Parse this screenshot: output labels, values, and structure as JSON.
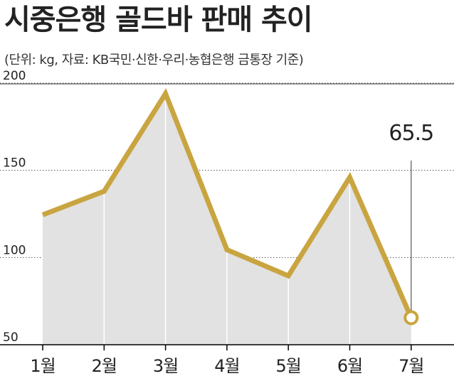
{
  "title": "시중은행 골드바 판매 추이",
  "subtitle": "(단위: kg, 자료: KB국민·신한·우리·농협은행 금통장 기준)",
  "colors": {
    "line": "#c9a541",
    "area": "#e2e2e2",
    "grid": "#555555",
    "text": "#222222",
    "frame": "#000000"
  },
  "chart_data": {
    "type": "area",
    "title": "시중은행 골드바 판매 추이",
    "subtitle": "(단위: kg, 자료: KB국민·신한·우리·농협은행 금통장 기준)",
    "categories": [
      "1월",
      "2월",
      "3월",
      "4월",
      "5월",
      "6월",
      "7월"
    ],
    "values": [
      124.5,
      138,
      194,
      104.5,
      89.5,
      146,
      65.5
    ],
    "ylim": [
      50,
      200
    ],
    "yticks": [
      50,
      100,
      150,
      200
    ],
    "grid": "horizontal dotted",
    "annotation": {
      "category": "7월",
      "label": "65.5"
    }
  }
}
